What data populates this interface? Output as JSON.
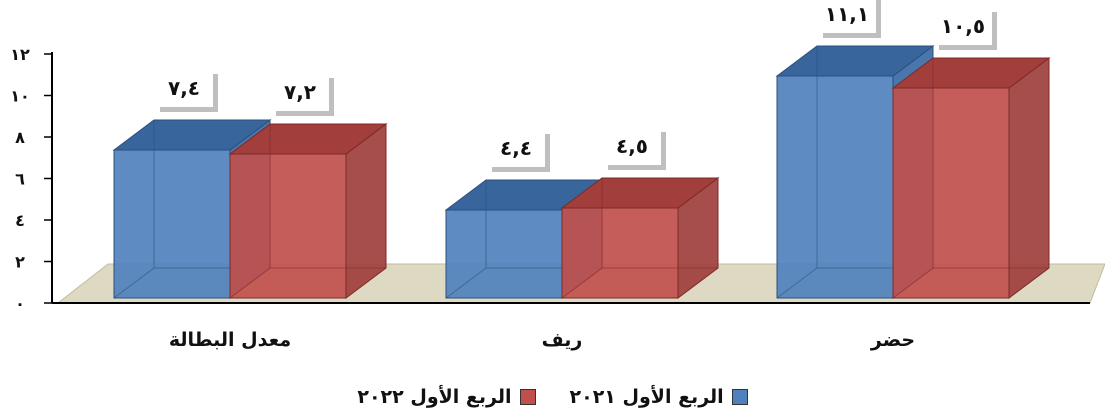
{
  "chart_data": {
    "type": "bar",
    "categories": [
      "معدل البطالة",
      "ريف",
      "حضر"
    ],
    "series": [
      {
        "name": "الربع الأول ٢٠٢١",
        "values": [
          7.4,
          4.4,
          11.1
        ],
        "labels": [
          "٧,٤",
          "٤,٤",
          "١١,١"
        ],
        "color": "#4f81bd"
      },
      {
        "name": "الربع الأول ٢٠٢٢",
        "values": [
          7.2,
          4.5,
          10.5
        ],
        "labels": [
          "٧,٢",
          "٤,٥",
          "١٠,٥"
        ],
        "color": "#c0504d"
      }
    ],
    "ylim": [
      0,
      12
    ],
    "yticks": [
      0,
      2,
      4,
      6,
      8,
      10,
      12
    ],
    "ytick_labels": [
      "٠",
      "٢",
      "٤",
      "٦",
      "٨",
      "١٠",
      "١٢"
    ],
    "grid": false,
    "legend_position": "bottom",
    "style": "3d-column"
  }
}
